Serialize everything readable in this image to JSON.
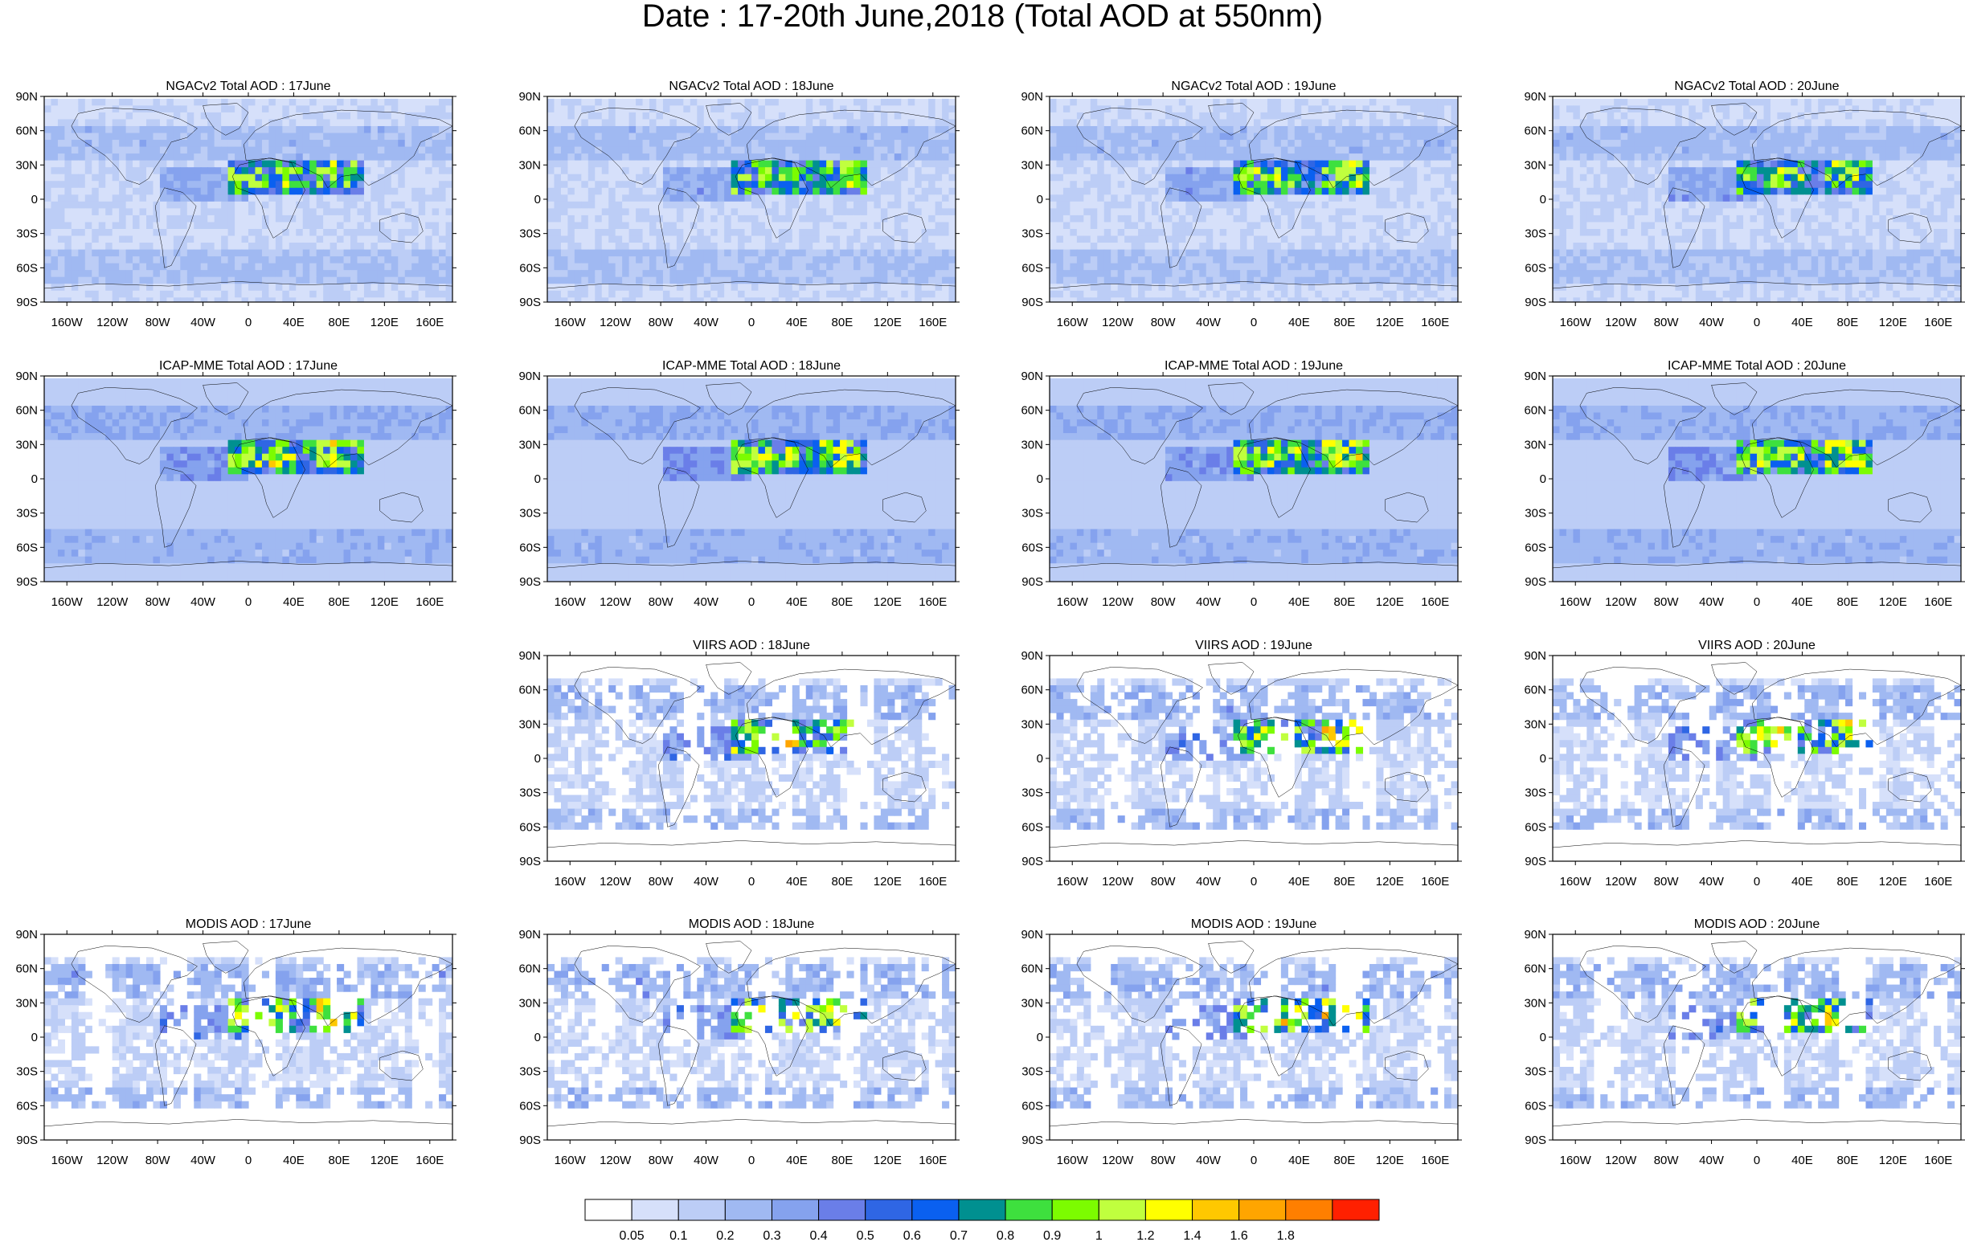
{
  "title": "Date : 17-20th June,2018 (Total AOD at 550nm)",
  "lat_labels": [
    "90N",
    "60N",
    "30N",
    "0",
    "30S",
    "60S",
    "90S"
  ],
  "lon_labels": [
    "160W",
    "120W",
    "80W",
    "40W",
    "0",
    "40E",
    "80E",
    "120E",
    "160E"
  ],
  "colors": {
    "ocean_background": "#ffffff",
    "coastline": "#000000",
    "frame": "#000000"
  },
  "rows": [
    {
      "product": "NGACv2",
      "panels": [
        {
          "title": "NGACv2 Total AOD : 17June",
          "day": 17
        },
        {
          "title": "NGACv2 Total AOD : 18June",
          "day": 18
        },
        {
          "title": "NGACv2 Total AOD : 19June",
          "day": 19
        },
        {
          "title": "NGACv2 Total AOD : 20June",
          "day": 20
        }
      ]
    },
    {
      "product": "ICAP-MME",
      "panels": [
        {
          "title": "ICAP-MME Total AOD : 17June",
          "day": 17
        },
        {
          "title": "ICAP-MME Total AOD : 18June",
          "day": 18
        },
        {
          "title": "ICAP-MME Total AOD : 19June",
          "day": 19
        },
        {
          "title": "ICAP-MME Total AOD : 20June",
          "day": 20
        }
      ]
    },
    {
      "product": "VIIRS",
      "panels": [
        null,
        {
          "title": "VIIRS AOD : 18June",
          "day": 18
        },
        {
          "title": "VIIRS AOD : 19June",
          "day": 19
        },
        {
          "title": "VIIRS AOD : 20June",
          "day": 20
        }
      ]
    },
    {
      "product": "MODIS",
      "panels": [
        {
          "title": "MODIS AOD : 17June",
          "day": 17
        },
        {
          "title": "MODIS AOD : 18June",
          "day": 18
        },
        {
          "title": "MODIS AOD : 19June",
          "day": 19
        },
        {
          "title": "MODIS AOD : 20June",
          "day": 20
        }
      ]
    }
  ],
  "colorbar": {
    "colors": [
      "#ffffff",
      "#d6e0fa",
      "#bccdf6",
      "#a0b9f2",
      "#85a2ee",
      "#6a7ee8",
      "#2f66e4",
      "#0a60f0",
      "#009090",
      "#3ee03e",
      "#7cfc00",
      "#c0ff3e",
      "#ffff00",
      "#ffc800",
      "#ffa500",
      "#ff7f00",
      "#ff2000"
    ],
    "labels": [
      "0.05",
      "0.1",
      "0.2",
      "0.3",
      "0.4",
      "0.5",
      "0.6",
      "0.7",
      "0.8",
      "0.9",
      "1",
      "1.2",
      "1.4",
      "1.6",
      "1.8"
    ]
  },
  "chart_data": {
    "type": "heatmap",
    "title": "Date : 17-20th June,2018 (Total AOD at 550nm)",
    "variable": "Total AOD at 550nm",
    "x_axis": "longitude",
    "y_axis": "latitude",
    "xlim": [
      -180,
      180
    ],
    "ylim": [
      -90,
      90
    ],
    "xticks": [
      -160,
      -120,
      -80,
      -40,
      0,
      40,
      80,
      120,
      160
    ],
    "xticklabels": [
      "160W",
      "120W",
      "80W",
      "40W",
      "0",
      "40E",
      "80E",
      "120E",
      "160E"
    ],
    "yticks": [
      90,
      60,
      30,
      0,
      -30,
      -60,
      -90
    ],
    "yticklabels": [
      "90N",
      "60N",
      "30N",
      "0",
      "30S",
      "60S",
      "90S"
    ],
    "levels": [
      0.05,
      0.1,
      0.2,
      0.3,
      0.4,
      0.5,
      0.6,
      0.7,
      0.8,
      0.9,
      1,
      1.2,
      1.4,
      1.6,
      1.8
    ],
    "dust_hotspots_approx": {
      "NGACv2": [
        {
          "lon": 0,
          "lat": 20,
          "aod": 0.8
        },
        {
          "lon": 30,
          "lat": 25,
          "aod": 0.7
        }
      ],
      "ICAP-MME": [
        {
          "lon": 0,
          "lat": 20,
          "aod": 0.9
        },
        {
          "lon": 70,
          "lat": 28,
          "aod": 1.4
        }
      ],
      "VIIRS": [
        {
          "lon": -20,
          "lat": 12,
          "aod": 1.2
        },
        {
          "lon": 80,
          "lat": 25,
          "aod": 1.0
        }
      ],
      "MODIS": [
        {
          "lon": 10,
          "lat": 15,
          "aod": 1.6
        },
        {
          "lon": 70,
          "lat": 28,
          "aod": 1.8
        }
      ]
    },
    "grid": false,
    "legend": "bottom"
  }
}
